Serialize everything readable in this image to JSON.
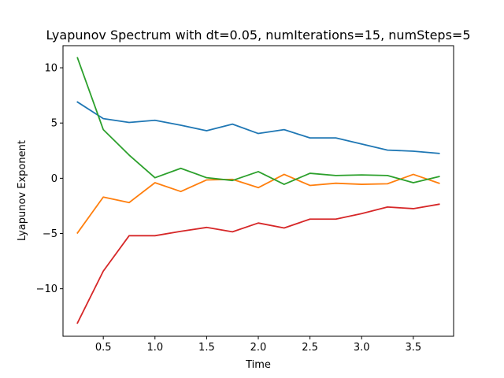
{
  "chart_data": {
    "type": "line",
    "title": "Lyapunov Spectrum with  dt=0.05, numIterations=15, numSteps=5",
    "xlabel": "Time",
    "ylabel": "Lyapunov Exponent",
    "xlim": [
      0.11,
      3.89
    ],
    "ylim": [
      -14.3,
      12.0
    ],
    "x_ticks": [
      0.5,
      1.0,
      1.5,
      2.0,
      2.5,
      3.0,
      3.5
    ],
    "x_tick_labels": [
      "0.5",
      "1.0",
      "1.5",
      "2.0",
      "2.5",
      "3.0",
      "3.5"
    ],
    "y_ticks": [
      10,
      5,
      0,
      -5,
      -10
    ],
    "y_tick_labels": [
      "10",
      "5",
      "0",
      "−5",
      "−10"
    ],
    "grid": false,
    "x": [
      0.25,
      0.5,
      0.75,
      1.0,
      1.25,
      1.5,
      1.75,
      2.0,
      2.25,
      2.5,
      2.75,
      3.0,
      3.25,
      3.5,
      3.75
    ],
    "series": [
      {
        "color": "#1f77b4",
        "values": [
          6.9,
          5.4,
          5.05,
          5.25,
          4.8,
          4.3,
          4.9,
          4.05,
          4.4,
          3.65,
          3.65,
          3.1,
          2.55,
          2.45,
          2.25
        ]
      },
      {
        "color": "#ff7f0e",
        "values": [
          -4.95,
          -1.7,
          -2.2,
          -0.4,
          -1.2,
          -0.15,
          -0.1,
          -0.85,
          0.35,
          -0.65,
          -0.45,
          -0.55,
          -0.5,
          0.35,
          -0.45
        ]
      },
      {
        "color": "#2ca02c",
        "values": [
          10.9,
          4.4,
          2.1,
          0.05,
          0.9,
          0.05,
          -0.2,
          0.6,
          -0.55,
          0.45,
          0.25,
          0.3,
          0.25,
          -0.4,
          0.15
        ]
      },
      {
        "color": "#d62728",
        "values": [
          -13.1,
          -8.4,
          -5.2,
          -5.2,
          -4.8,
          -4.45,
          -4.85,
          -4.05,
          -4.5,
          -3.7,
          -3.7,
          -3.2,
          -2.6,
          -2.75,
          -2.35
        ]
      }
    ]
  }
}
